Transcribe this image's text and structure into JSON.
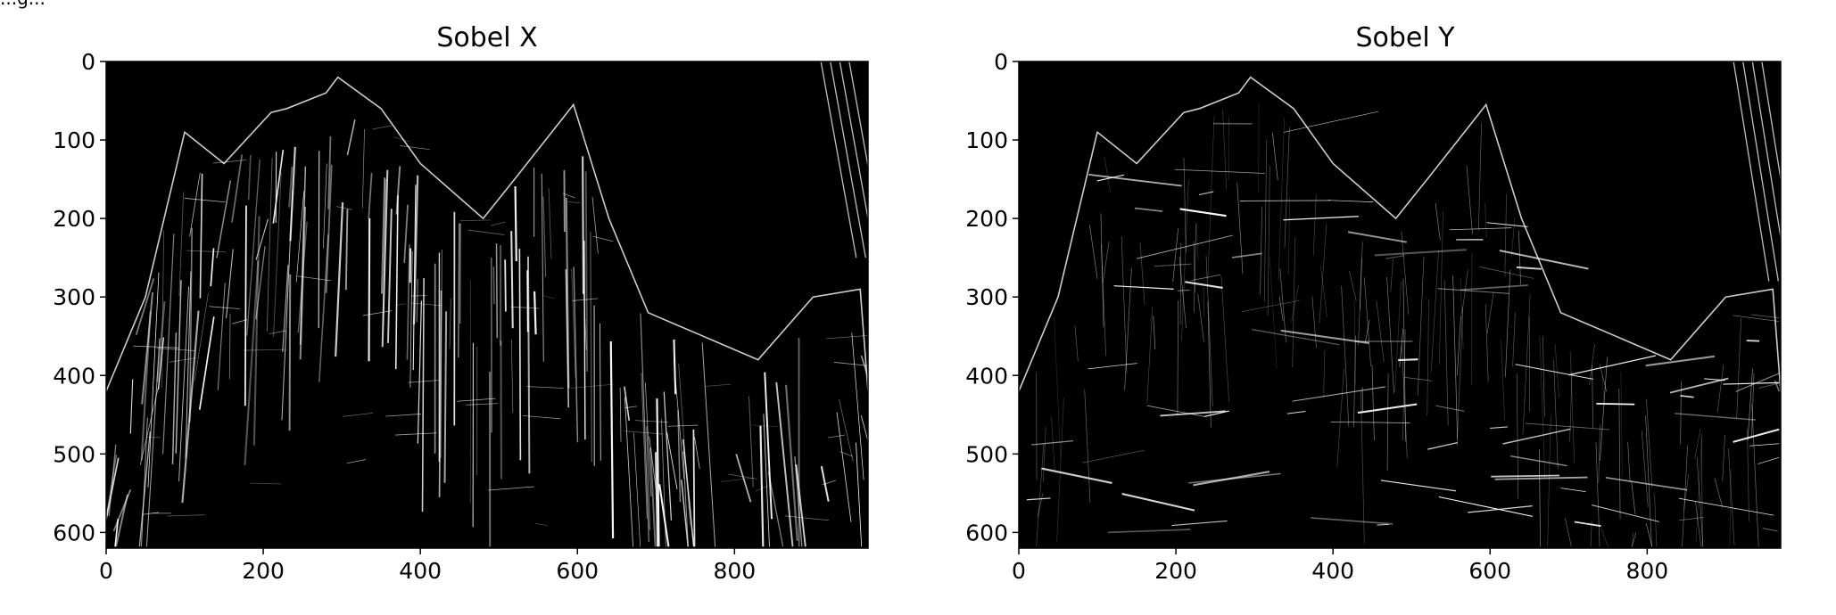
{
  "header_fragment": "...g...",
  "chart_data": [
    {
      "type": "image",
      "title": "Sobel X",
      "xlabel": "",
      "ylabel": "",
      "xlim": [
        0,
        970
      ],
      "ylim": [
        620,
        0
      ],
      "xticks": [
        0,
        200,
        400,
        600,
        800
      ],
      "yticks": [
        0,
        100,
        200,
        300,
        400,
        500,
        600
      ],
      "colormap": "gray",
      "edge_orientation": "vertical",
      "grid": false
    },
    {
      "type": "image",
      "title": "Sobel Y",
      "xlabel": "",
      "ylabel": "",
      "xlim": [
        0,
        970
      ],
      "ylim": [
        620,
        0
      ],
      "xticks": [
        0,
        200,
        400,
        600,
        800
      ],
      "yticks": [
        0,
        100,
        200,
        300,
        400,
        500,
        600
      ],
      "colormap": "gray",
      "edge_orientation": "horizontal",
      "grid": false
    }
  ]
}
